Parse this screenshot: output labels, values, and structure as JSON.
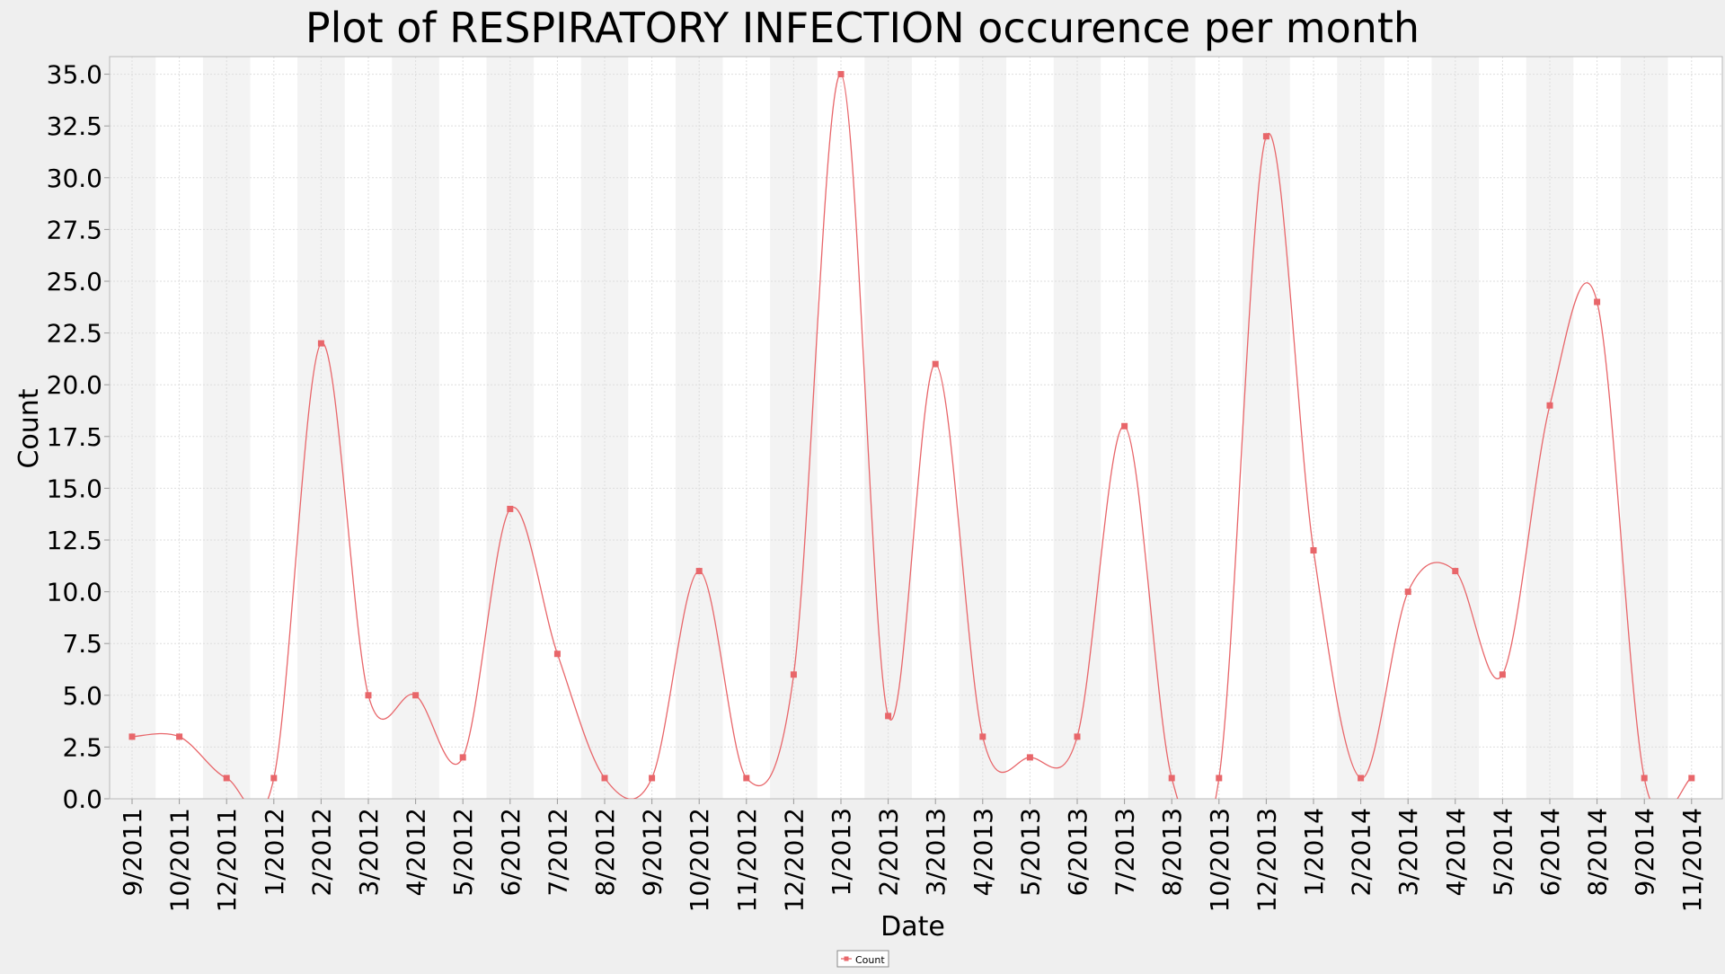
{
  "chart_data": {
    "type": "line",
    "title": "Plot of RESPIRATORY INFECTION occurence per month",
    "xlabel": "Date",
    "ylabel": "Count",
    "ylim": [
      0,
      35.0
    ],
    "yticks": [
      "0.0",
      "2.5",
      "5.0",
      "7.5",
      "10.0",
      "12.5",
      "15.0",
      "17.5",
      "20.0",
      "22.5",
      "25.0",
      "27.5",
      "30.0",
      "32.5",
      "35.0"
    ],
    "grid": true,
    "legend_position": "bottom-center",
    "categories": [
      "9/2011",
      "10/2011",
      "12/2011",
      "1/2012",
      "2/2012",
      "3/2012",
      "4/2012",
      "5/2012",
      "6/2012",
      "7/2012",
      "8/2012",
      "9/2012",
      "10/2012",
      "11/2012",
      "12/2012",
      "1/2013",
      "2/2013",
      "3/2013",
      "4/2013",
      "5/2013",
      "6/2013",
      "7/2013",
      "8/2013",
      "10/2013",
      "12/2013",
      "1/2014",
      "2/2014",
      "3/2014",
      "4/2014",
      "5/2014",
      "6/2014",
      "8/2014",
      "9/2014",
      "11/2014"
    ],
    "series": [
      {
        "name": "Count",
        "color": "#e8666a",
        "values": [
          3,
          3,
          1,
          1,
          22,
          5,
          5,
          2,
          14,
          7,
          1,
          1,
          11,
          1,
          6,
          35,
          4,
          21,
          3,
          2,
          3,
          18,
          1,
          1,
          32,
          12,
          1,
          10,
          11,
          6,
          19,
          24,
          1,
          1
        ]
      }
    ]
  }
}
